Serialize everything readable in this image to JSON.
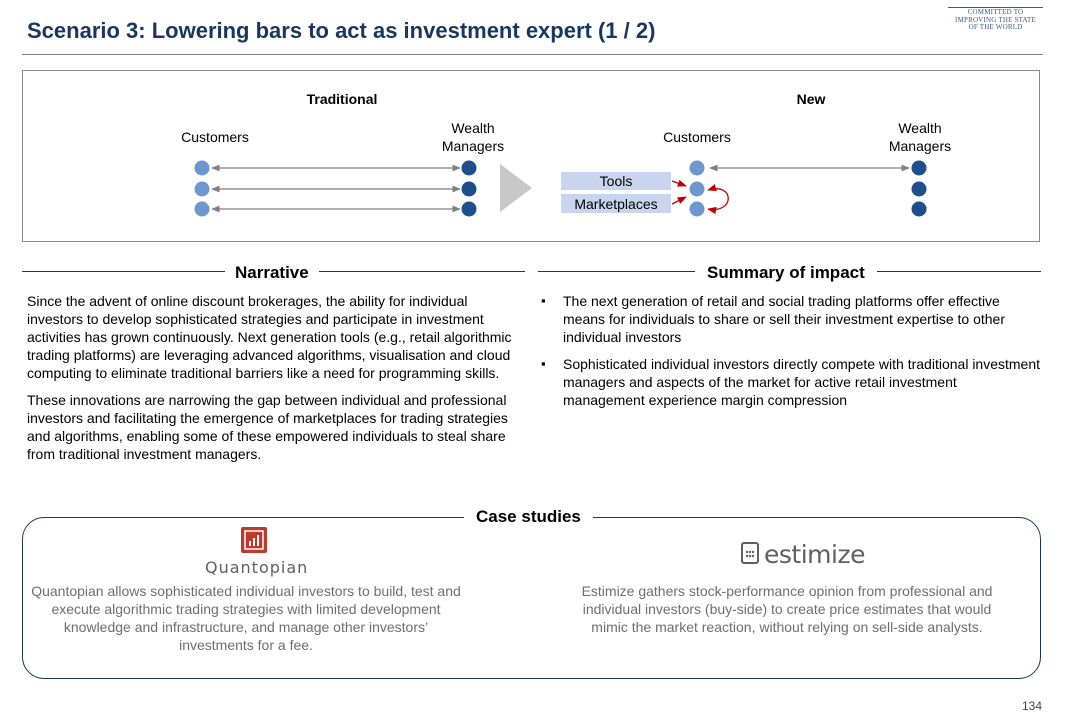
{
  "header": {
    "title": "Scenario 3: Lowering bars to act as investment expert (1 / 2)",
    "logo_lines": [
      "COMMITTED TO",
      "IMPROVING THE STATE",
      "OF THE WORLD"
    ]
  },
  "diagram": {
    "traditional": {
      "heading": "Traditional",
      "left_label": "Customers",
      "right_label_lines": [
        "Wealth",
        "Managers"
      ]
    },
    "new": {
      "heading": "New",
      "left_label": "Customers",
      "right_label_lines": [
        "Wealth",
        "Managers"
      ],
      "tools_label": "Tools",
      "marketplaces_label": "Marketplaces"
    },
    "colors": {
      "customer_dot": "#6f97cf",
      "manager_dot": "#1f4e8c",
      "arrow": "#7f7f7f",
      "label_box": "#c9d5ee",
      "red_arrow": "#c00000",
      "chevron": "#c8c8c8"
    }
  },
  "narrative": {
    "heading": "Narrative",
    "paragraphs": [
      "Since the advent of online discount brokerages, the ability for individual investors to develop sophisticated strategies and participate in investment activities has grown continuously. Next generation tools (e.g., retail algorithmic trading platforms) are leveraging advanced algorithms, visualisation and cloud computing to eliminate traditional barriers like a need for programming skills.",
      "These innovations are narrowing the gap between individual and professional investors and facilitating the emergence of marketplaces for trading strategies and algorithms, enabling some of these empowered individuals to steal share from traditional investment managers."
    ]
  },
  "impact": {
    "heading": "Summary of impact",
    "bullets": [
      "The next generation of retail and social trading platforms offer effective means for individuals to share or sell their investment expertise to other individual investors",
      "Sophisticated individual investors directly compete with traditional investment managers and aspects of the market for active retail investment management experience margin compression"
    ]
  },
  "case_studies": {
    "heading": "Case studies",
    "quantopian": {
      "logo_text": "Quantopian",
      "description": "Quantopian allows sophisticated individual investors to build, test and execute algorithmic trading strategies with limited development knowledge and infrastructure, and manage other investors’ investments for a fee."
    },
    "estimize": {
      "logo_text": "estimize",
      "description": "Estimize gathers stock-performance opinion from professional and individual investors (buy-side) to create price estimates that would mimic the market reaction, without relying on sell-side analysts."
    }
  },
  "footer": {
    "page_number": "134"
  }
}
